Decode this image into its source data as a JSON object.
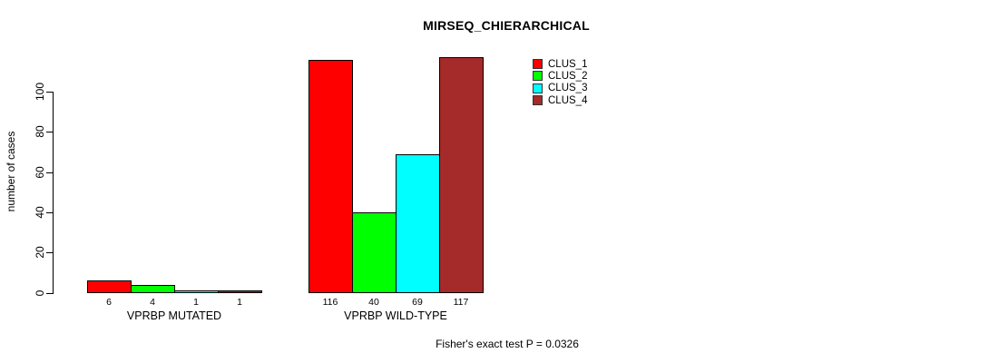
{
  "chart_data": {
    "type": "bar",
    "title": "MIRSEQ_CHIERARCHICAL",
    "ylabel": "number of cases",
    "xlabel": "",
    "ylim": [
      0,
      117
    ],
    "yticks": [
      0,
      20,
      40,
      60,
      80,
      100
    ],
    "grid": false,
    "legend_position": "top-right",
    "categories": [
      "VPRBP MUTATED",
      "VPRBP WILD-TYPE"
    ],
    "series": [
      {
        "name": "CLUS_1",
        "color": "#FF0000",
        "values": [
          6,
          116
        ]
      },
      {
        "name": "CLUS_2",
        "color": "#00FF00",
        "values": [
          4,
          40
        ]
      },
      {
        "name": "CLUS_3",
        "color": "#00FFFF",
        "values": [
          1,
          69
        ]
      },
      {
        "name": "CLUS_4",
        "color": "#A52A2A",
        "values": [
          1,
          117
        ]
      }
    ],
    "bar_value_labels": [
      [
        "6",
        "4",
        "1",
        "1"
      ],
      [
        "116",
        "40",
        "69",
        "117"
      ]
    ],
    "annotation": "Fisher's exact test P = 0.0326"
  }
}
